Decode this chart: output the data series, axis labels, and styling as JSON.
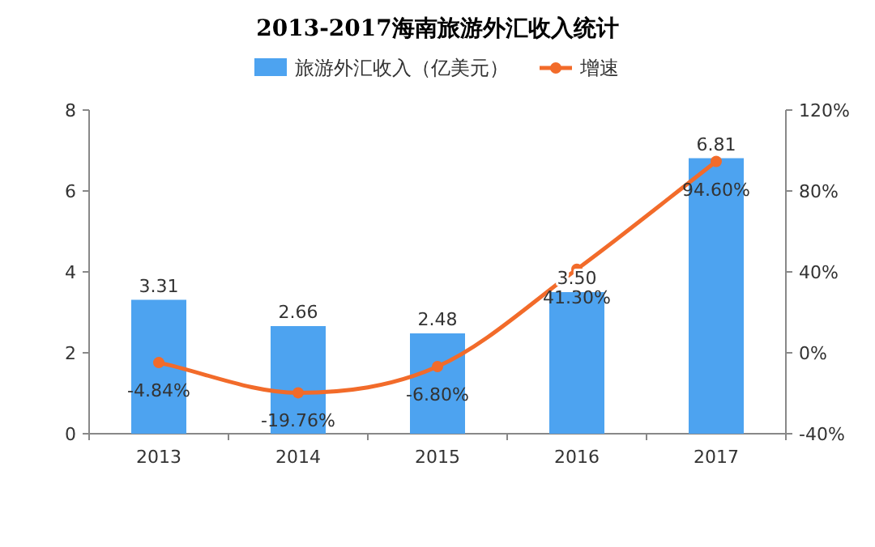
{
  "chart_data": {
    "type": "bar",
    "title": "2013-2017海南旅游外汇收入统计",
    "categories": [
      "2013",
      "2014",
      "2015",
      "2016",
      "2017"
    ],
    "series": [
      {
        "name": "旅游外汇收入（亿美元）",
        "color": "#4da3f0",
        "values": [
          3.31,
          2.66,
          2.48,
          3.5,
          6.81
        ],
        "value_labels": [
          "3.31",
          "2.66",
          "2.48",
          "3.50",
          "6.81"
        ]
      },
      {
        "name": "增速",
        "type": "line",
        "axis": "y2",
        "color": "#f26b2a",
        "values": [
          -4.84,
          -19.76,
          -6.8,
          41.3,
          94.6
        ],
        "value_labels": [
          "-4.84%",
          "-19.76%",
          "-6.80%",
          "41.30%",
          "94.60%"
        ]
      }
    ],
    "ylim": [
      0,
      8
    ],
    "yticks": [
      0,
      2,
      4,
      6,
      8
    ],
    "y2lim": [
      -40,
      120
    ],
    "y2ticks": [
      {
        "value": -40,
        "label": "-40%"
      },
      {
        "value": 0,
        "label": "0%"
      },
      {
        "value": 40,
        "label": "40%"
      },
      {
        "value": 80,
        "label": "80%"
      },
      {
        "value": 120,
        "label": "120%"
      }
    ],
    "legend": "top",
    "grid": false,
    "marker": "circle",
    "line_style": "solid"
  }
}
